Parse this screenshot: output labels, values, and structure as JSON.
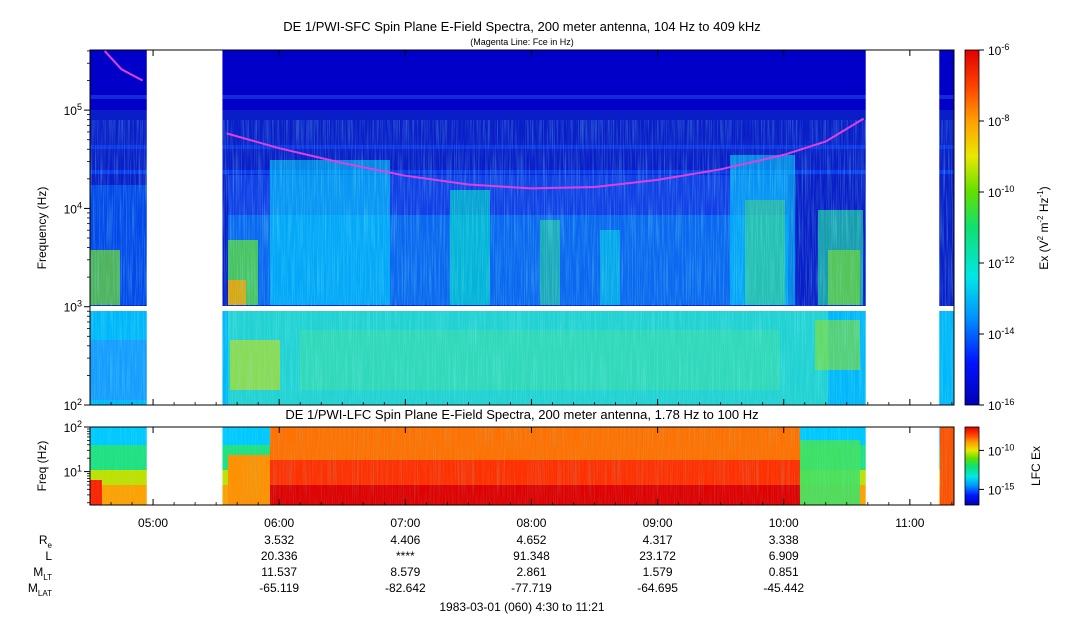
{
  "chart_data": [
    {
      "type": "heatmap",
      "title": "DE 1/PWI-SFC  Spin Plane E-Field Spectra, 200 meter antenna, 104 Hz to 409 kHz",
      "subtitle": "(Magenta Line: Fce in Hz)",
      "ylabel": "Frequency (Hz)",
      "yscale": "log",
      "ylim": [
        100,
        409000
      ],
      "ytick_labels": [
        "10^2",
        "10^3",
        "10^4",
        "10^5"
      ],
      "colorbar": {
        "label": "Ex (V^2 m^-2 Hz^-1)",
        "label_parts": [
          "Ex (V",
          "2",
          " m",
          "-2",
          " Hz",
          "-1",
          ")"
        ],
        "scale": "log",
        "range": [
          1e-16,
          1e-06
        ],
        "tick_labels": [
          "10^-6",
          "10^-8",
          "10^-10",
          "10^-12",
          "10^-14",
          "10^-16"
        ]
      },
      "data_gaps": [
        [
          "04:57",
          "05:33"
        ],
        [
          "10:39",
          "11:14"
        ]
      ],
      "fce_line": {
        "name": "Fce",
        "color": "#e040e0",
        "times": [
          "04:37",
          "04:45",
          "04:55",
          "05:35",
          "06:00",
          "06:30",
          "07:00",
          "07:30",
          "08:00",
          "08:30",
          "09:00",
          "09:30",
          "10:00",
          "10:20",
          "10:38"
        ],
        "values_hz": [
          400000,
          260000,
          200000,
          58000,
          41000,
          29000,
          21500,
          17500,
          16000,
          16500,
          19500,
          25000,
          35000,
          48000,
          82000
        ]
      }
    },
    {
      "type": "heatmap",
      "title": "DE 1/PWI-LFC  Spin Plane E-Field Spectra, 200 meter antenna, 1.78 Hz to 100 Hz",
      "ylabel": "Freq (Hz)",
      "yscale": "log",
      "ylim": [
        1.78,
        100
      ],
      "ytick_labels": [
        "10^1",
        "10^2"
      ],
      "colorbar": {
        "label": "LFC Ex",
        "scale": "log",
        "range": [
          1e-17,
          1e-07
        ],
        "tick_labels": [
          "10^-10",
          "10^-15"
        ]
      },
      "data_gaps": [
        [
          "04:57",
          "05:33"
        ],
        [
          "10:39",
          "11:14"
        ]
      ]
    }
  ],
  "x_axis": {
    "start": "04:30",
    "end": "11:21",
    "tick_labels": [
      "05:00",
      "06:00",
      "07:00",
      "08:00",
      "09:00",
      "10:00",
      "11:00"
    ]
  },
  "ephemeris": {
    "row_labels": [
      {
        "main": "R",
        "sub": "e"
      },
      {
        "main": "L",
        "sub": ""
      },
      {
        "main": "M",
        "sub": "LT"
      },
      {
        "main": "M",
        "sub": "LAT"
      }
    ],
    "times": [
      "06:00",
      "07:00",
      "08:00",
      "09:00",
      "10:00"
    ],
    "rows": [
      [
        "3.532",
        "4.406",
        "4.652",
        "4.317",
        "3.338"
      ],
      [
        "20.336",
        "****",
        "91.348",
        "23.172",
        "6.909"
      ],
      [
        "11.537",
        "8.579",
        "2.861",
        "1.579",
        "0.851"
      ],
      [
        "-65.119",
        "-82.642",
        "-77.719",
        "-64.695",
        "-45.442"
      ]
    ]
  },
  "footer": "1983-03-01 (060) 4:30 to 11:21"
}
